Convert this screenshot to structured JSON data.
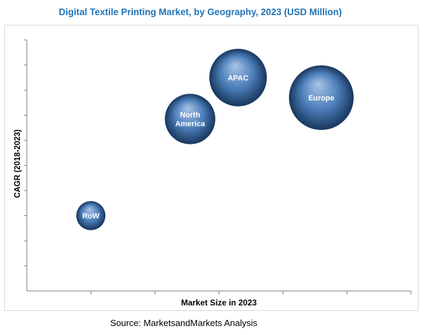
{
  "title": "Digital Textile Printing Market, by Geography, 2023 (USD Million)",
  "source": "Source: MarketsandMarkets Analysis",
  "chart_data": {
    "type": "bubble",
    "title": "Digital Textile Printing Market, by Geography, 2023 (USD Million)",
    "xlabel": "Market Size in 2023",
    "ylabel": "CAGR (2018-2023)",
    "x_tick_count": 6,
    "y_tick_count": 10,
    "x_range": [
      0,
      6
    ],
    "y_range": [
      0,
      10
    ],
    "grid": false,
    "legend": "none",
    "points": [
      {
        "label": "RoW",
        "x": 1.0,
        "y": 3.0,
        "size": 0.45
      },
      {
        "label": "North America",
        "x": 2.55,
        "y": 6.85,
        "size": 0.78
      },
      {
        "label": "APAC",
        "x": 3.3,
        "y": 8.5,
        "size": 0.89
      },
      {
        "label": "Europe",
        "x": 4.6,
        "y": 7.7,
        "size": 1.0
      }
    ],
    "colors": {
      "bubble_light": "#a9c4e4",
      "bubble_mid": "#4f81bd",
      "bubble_dark": "#17365d",
      "axis": "#7f7f7f",
      "title": "#1f73b7"
    }
  }
}
